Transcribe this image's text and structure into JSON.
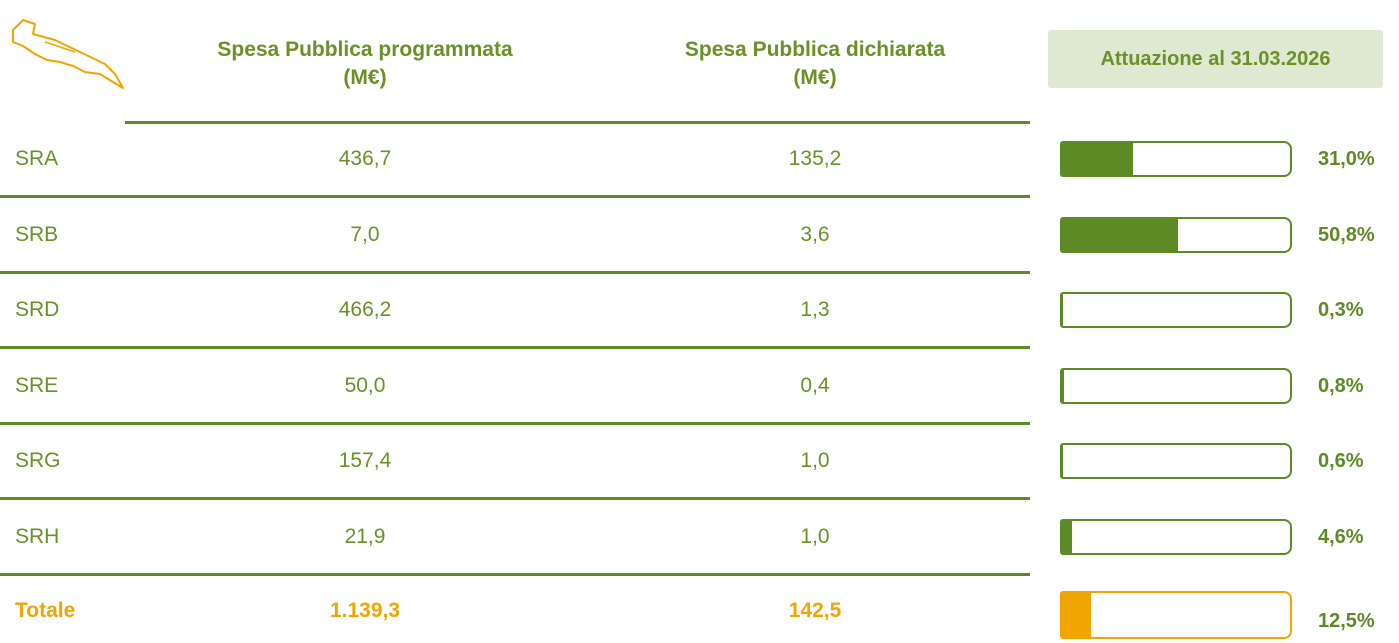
{
  "table": {
    "columns": [
      {
        "title": "Spesa Pubblica programmata",
        "unit": "(M€)"
      },
      {
        "title": "Spesa Pubblica dichiarata",
        "unit": "(M€)"
      }
    ],
    "attuazione_header": "Attuazione al 31.03.2026",
    "rows": [
      {
        "name": "SRA",
        "programmata": "436,7",
        "dichiarata": "135,2",
        "attuazione": {
          "value": 31.0,
          "label": "31,0%"
        }
      },
      {
        "name": "SRB",
        "programmata": "7,0",
        "dichiarata": "3,6",
        "attuazione": {
          "value": 50.8,
          "label": "50,8%"
        }
      },
      {
        "name": "SRD",
        "programmata": "466,2",
        "dichiarata": "1,3",
        "attuazione": {
          "value": 0.3,
          "label": "0,3%"
        }
      },
      {
        "name": "SRE",
        "programmata": "50,0",
        "dichiarata": "0,4",
        "attuazione": {
          "value": 0.8,
          "label": "0,8%"
        }
      },
      {
        "name": "SRG",
        "programmata": "157,4",
        "dichiarata": "1,0",
        "attuazione": {
          "value": 0.6,
          "label": "0,6%"
        }
      },
      {
        "name": "SRH",
        "programmata": "21,9",
        "dichiarata": "1,0",
        "attuazione": {
          "value": 4.6,
          "label": "4,6%"
        }
      }
    ],
    "total": {
      "name": "Totale",
      "programmata": "1.139,3",
      "dichiarata": "142,5",
      "attuazione": {
        "value": 12.5,
        "label": "12,5%"
      }
    }
  }
}
